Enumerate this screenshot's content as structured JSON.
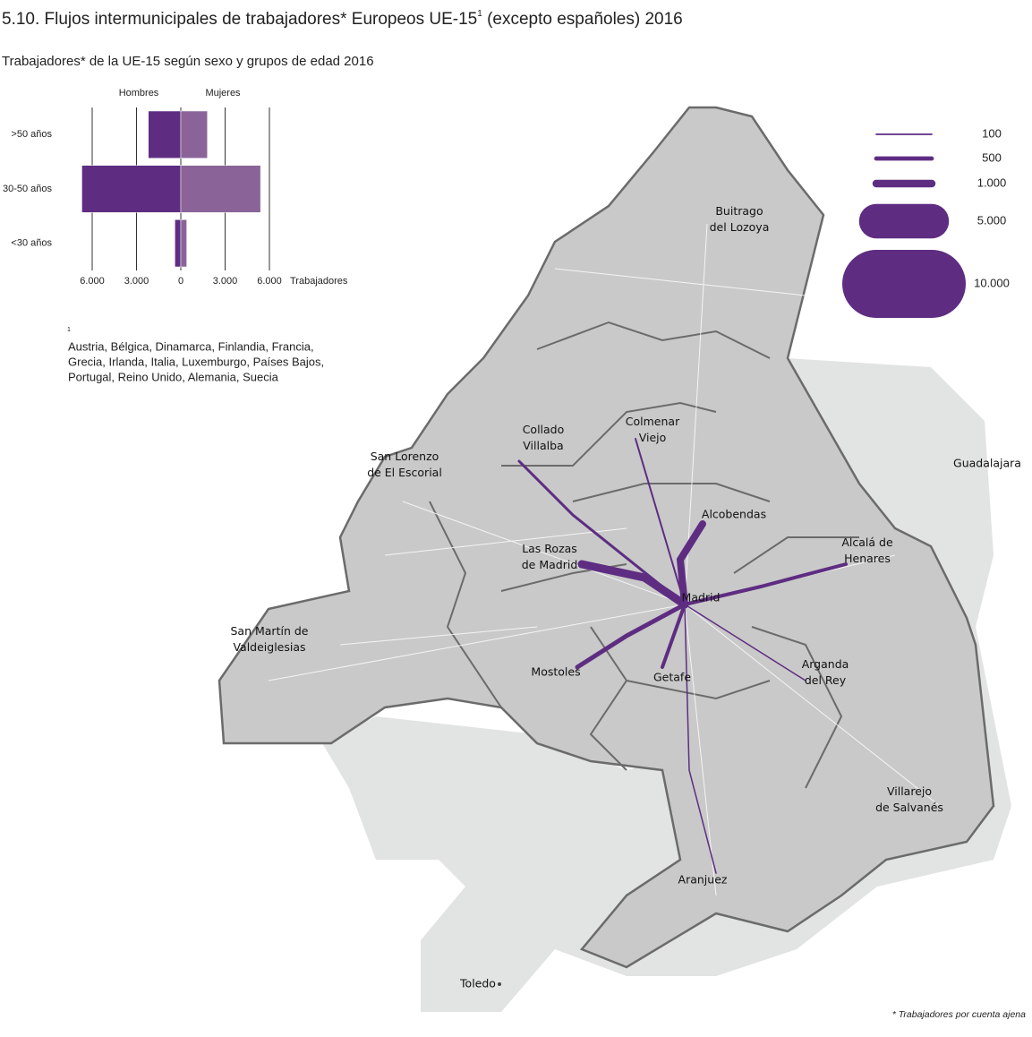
{
  "header": {
    "title": "5.10. Flujos intermunicipales de trabajadores*  Europeos UE-15",
    "title_sup": "1",
    "title_end": " (excepto españoles) 2016"
  },
  "chart_data": {
    "type": "pyramid",
    "title": "Trabajadores* de la UE-15 según sexo y grupos de edad 2016",
    "categories": [
      ">50 años",
      "30-50 años",
      "<30 años"
    ],
    "series": [
      {
        "name": "Hombres",
        "color": "#5e2d82",
        "values": [
          -2200,
          -6700,
          -400
        ]
      },
      {
        "name": "Mujeres",
        "color": "#8a6499",
        "values": [
          1800,
          5400,
          400
        ]
      }
    ],
    "xlim": [
      -6000,
      6000
    ],
    "xticks": [
      {
        "value": -6000,
        "label": "6.000"
      },
      {
        "value": -3000,
        "label": "3.000"
      },
      0,
      {
        "value": 3000,
        "label": "3.000"
      },
      {
        "value": 6000,
        "label": "6.000"
      }
    ],
    "xlabel": "Trabajadores",
    "grid": true
  },
  "footnote": {
    "mark": "1",
    "lines": [
      "Austria, Bélgica, Dinamarca, Finlandia, Francia,",
      "Grecia, Irlanda, Italia, Luxemburgo, Países Bajos,",
      "Portugal, Reino Unido, Alemania, Suecia"
    ]
  },
  "flow_legend": {
    "color": "#5e2d82",
    "values": [
      100,
      500,
      1000,
      5000,
      10000
    ],
    "value_labels": [
      "100",
      "500",
      "1.000",
      "5.000",
      "10.000"
    ]
  },
  "places": [
    [
      "Buitrago",
      "del Lozoya"
    ],
    [
      "Colmenar",
      "Viejo"
    ],
    [
      "Collado",
      "Villalba"
    ],
    [
      "San Lorenzo",
      "de El Escorial"
    ],
    [
      "Guadalajara"
    ],
    [
      "Alcobendas"
    ],
    [
      "Las Rozas",
      "de Madrid"
    ],
    [
      "Alcalá de",
      "Henares"
    ],
    [
      "Madrid"
    ],
    [
      "San Martín de",
      "Valdeiglesias"
    ],
    [
      "Arganda",
      "del Rey"
    ],
    [
      "Mostoles"
    ],
    [
      "Getafe"
    ],
    [
      "Villarejo",
      "de Salvanés"
    ],
    [
      "Aranjuez"
    ],
    [
      "Toledo"
    ]
  ],
  "source_note": "* Trabajadores por cuenta ajena"
}
